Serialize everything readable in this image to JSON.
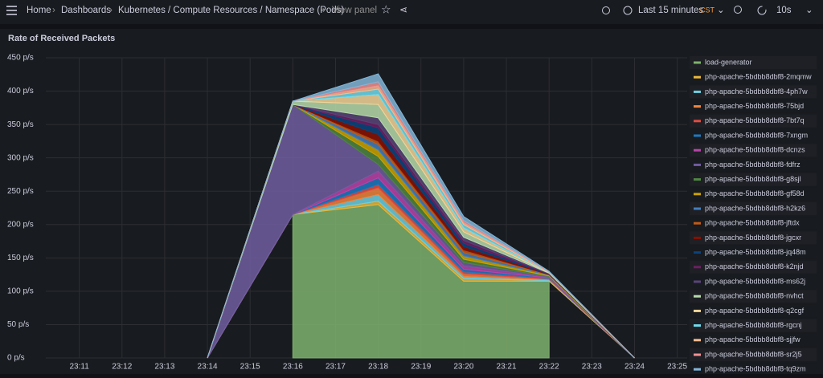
{
  "header": {
    "breadcrumb": [
      "Home",
      "Dashboards",
      "Kubernetes / Compute Resources / Namespace (Pods)"
    ],
    "view": "View panel",
    "time_range": "Last 15 minutes",
    "timezone": "CST",
    "refresh": "10s"
  },
  "chart_data": {
    "type": "area",
    "title": "Rate of Received Packets",
    "stacked": true,
    "x": [
      "23:14",
      "23:16",
      "23:18",
      "23:20",
      "23:22",
      "23:24"
    ],
    "xlim": [
      "23:10:13",
      "23:25:14"
    ],
    "xticks": [
      "23:11",
      "23:12",
      "23:13",
      "23:14",
      "23:15",
      "23:16",
      "23:17",
      "23:18",
      "23:19",
      "23:20",
      "23:21",
      "23:22",
      "23:23",
      "23:24",
      "23:25"
    ],
    "ylim": [
      0,
      450
    ],
    "yticks": [
      {
        "value": 0,
        "label": "0 p/s"
      },
      {
        "value": 50,
        "label": "50 p/s"
      },
      {
        "value": 100,
        "label": "100 p/s"
      },
      {
        "value": 150,
        "label": "150 p/s"
      },
      {
        "value": 200,
        "label": "200 p/s"
      },
      {
        "value": 250,
        "label": "250 p/s"
      },
      {
        "value": 300,
        "label": "300 p/s"
      },
      {
        "value": 350,
        "label": "350 p/s"
      },
      {
        "value": 400,
        "label": "400 p/s"
      },
      {
        "value": 450,
        "label": "450 p/s"
      }
    ],
    "grid": true,
    "series": [
      {
        "name": "load-generator",
        "color": "#7EB26D",
        "values": [
          null,
          215,
          230,
          115,
          115,
          null
        ]
      },
      {
        "name": "php-apache-5bdbb8dbf8-2mqmw",
        "color": "#EAB839",
        "values": [
          0,
          0,
          5,
          4,
          1,
          0
        ]
      },
      {
        "name": "php-apache-5bdbb8dbf8-4ph7w",
        "color": "#6ED0E0",
        "values": [
          0,
          0,
          10,
          3,
          1,
          0
        ]
      },
      {
        "name": "php-apache-5bdbb8dbf8-75bjd",
        "color": "#EF843C",
        "values": [
          0,
          0,
          10,
          4,
          1,
          0
        ]
      },
      {
        "name": "php-apache-5bdbb8dbf8-7bt7q",
        "color": "#E24D42",
        "values": [
          0,
          0,
          5,
          3,
          1,
          0
        ]
      },
      {
        "name": "php-apache-5bdbb8dbf8-7xngm",
        "color": "#1F78C1",
        "values": [
          0,
          0,
          10,
          4,
          1,
          0
        ]
      },
      {
        "name": "php-apache-5bdbb8dbf8-dcnzs",
        "color": "#BA43A9",
        "values": [
          0,
          0,
          10,
          5,
          1,
          0
        ]
      },
      {
        "name": "php-apache-5bdbb8dbf8-fdfrz",
        "color": "#705DA0",
        "values": [
          0,
          165,
          10,
          5,
          1,
          0
        ]
      },
      {
        "name": "php-apache-5bdbb8dbf8-g8sjl",
        "color": "#508642",
        "values": [
          0,
          0,
          12,
          5,
          1,
          0
        ]
      },
      {
        "name": "php-apache-5bdbb8dbf8-gf58d",
        "color": "#CCA300",
        "values": [
          0,
          0,
          10,
          5,
          1,
          0
        ]
      },
      {
        "name": "php-apache-5bdbb8dbf8-h2kz6",
        "color": "#447EBC",
        "values": [
          0,
          0,
          8,
          5,
          0.5,
          0
        ]
      },
      {
        "name": "php-apache-5bdbb8dbf8-jftdx",
        "color": "#C15C17",
        "values": [
          0,
          0,
          5,
          4,
          0.5,
          0
        ]
      },
      {
        "name": "php-apache-5bdbb8dbf8-jgcxr",
        "color": "#890F02",
        "values": [
          0,
          0,
          10,
          5,
          0.5,
          0
        ]
      },
      {
        "name": "php-apache-5bdbb8dbf8-jq48m",
        "color": "#0A437C",
        "values": [
          0,
          0,
          10,
          5,
          0.5,
          0
        ]
      },
      {
        "name": "php-apache-5bdbb8dbf8-k2njd",
        "color": "#6D1F62",
        "values": [
          0,
          0,
          5,
          4,
          0.5,
          0
        ]
      },
      {
        "name": "php-apache-5bdbb8dbf8-ms62j",
        "color": "#584477",
        "values": [
          0,
          0,
          10,
          5,
          0.5,
          0
        ]
      },
      {
        "name": "php-apache-5bdbb8dbf8-nvhct",
        "color": "#B7DBAB",
        "values": [
          0,
          5,
          20,
          8,
          0.5,
          0
        ]
      },
      {
        "name": "php-apache-5bdbb8dbf8-q2cgf",
        "color": "#F4D598",
        "values": [
          0,
          0,
          15,
          6,
          0.5,
          0
        ]
      },
      {
        "name": "php-apache-5bdbb8dbf8-rgcnj",
        "color": "#70DBED",
        "values": [
          0,
          0,
          8,
          5,
          0.5,
          0
        ]
      },
      {
        "name": "php-apache-5bdbb8dbf8-sjjfw",
        "color": "#F9BA8F",
        "values": [
          0,
          0,
          5,
          3,
          0.5,
          0
        ]
      },
      {
        "name": "php-apache-5bdbb8dbf8-sr2j5",
        "color": "#F29191",
        "values": [
          0,
          0,
          6,
          3,
          0.5,
          0
        ]
      },
      {
        "name": "php-apache-5bdbb8dbf8-tq9zm",
        "color": "#82B5D8",
        "values": [
          0,
          0,
          12,
          6,
          0.5,
          0
        ]
      }
    ]
  }
}
